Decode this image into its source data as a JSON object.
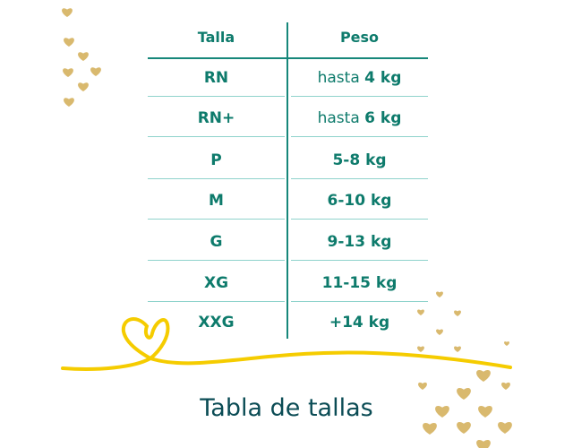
{
  "table": {
    "headers": [
      "Talla",
      "Peso"
    ],
    "rows": [
      {
        "talla": "RN",
        "peso_prefix": "hasta ",
        "peso": "4 kg"
      },
      {
        "talla": "RN+",
        "peso_prefix": "hasta ",
        "peso": "6 kg"
      },
      {
        "talla": "P",
        "peso_prefix": "",
        "peso": "5-8 kg"
      },
      {
        "talla": "M",
        "peso_prefix": "",
        "peso": "6-10 kg"
      },
      {
        "talla": "G",
        "peso_prefix": "",
        "peso": "9-13 kg"
      },
      {
        "talla": "XG",
        "peso_prefix": "",
        "peso": "11-15 kg"
      },
      {
        "talla": "XXG",
        "peso_prefix": "",
        "peso": "+14 kg"
      }
    ]
  },
  "title": "Tabla de tallas",
  "colors": {
    "text": "#0e7b6c",
    "title": "#0b4c55",
    "ribbon": "#f5cc00",
    "hearts": "#d9b96e"
  },
  "icons": [
    "heart-icon",
    "ribbon-heart-icon"
  ]
}
